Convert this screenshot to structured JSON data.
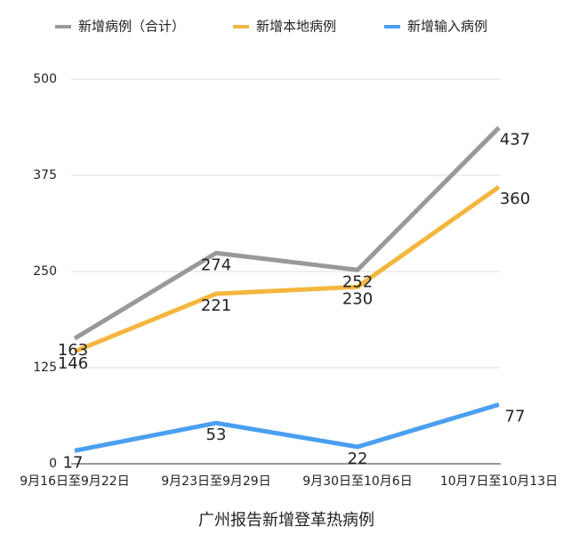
{
  "chart_data": {
    "type": "line",
    "title": "广州报告新增登革热病例",
    "categories": [
      "9月16日至9月22日",
      "9月23日至9月29日",
      "9月30日至10月6日",
      "10月7日至10月13日"
    ],
    "series": [
      {
        "name": "新增病例（合计）",
        "color": "#999999",
        "values": [
          163,
          274,
          252,
          437
        ]
      },
      {
        "name": "新增本地病例",
        "color": "#f4b63f",
        "values": [
          146,
          221,
          230,
          360
        ]
      },
      {
        "name": "新增输入病例",
        "color": "#4a9ff0",
        "values": [
          17,
          53,
          22,
          77
        ]
      }
    ],
    "ylim": [
      0,
      500
    ],
    "yticks": [
      0,
      125,
      250,
      375,
      500
    ],
    "grid": true,
    "legend": "top"
  }
}
